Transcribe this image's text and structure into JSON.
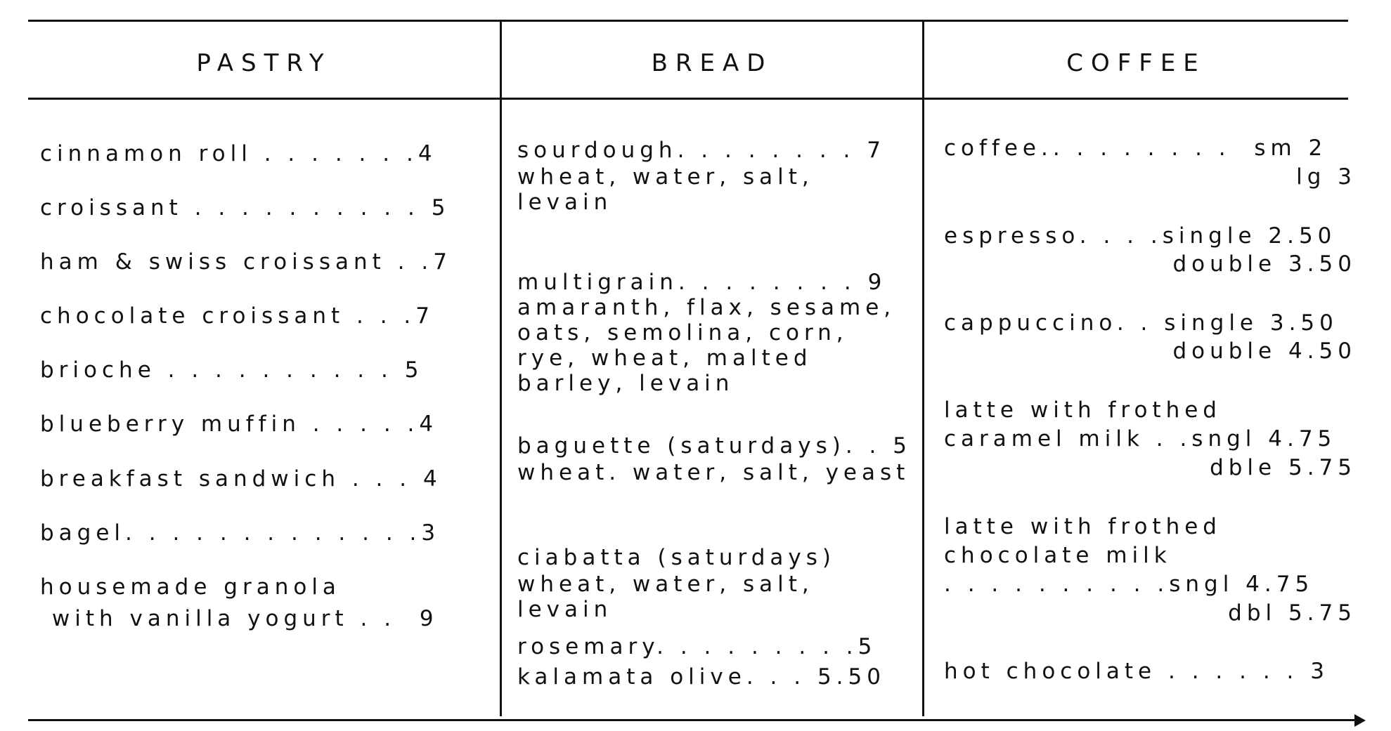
{
  "headers": {
    "pastry": "PASTRY",
    "bread": "BREAD",
    "coffee": "COFFEE"
  },
  "pastry": [
    "cinnamon roll . . . . . . .4",
    "croissant . . . . . . . . . . 5",
    "ham & swiss croissant . .7",
    "chocolate croissant . . .7",
    "brioche . . . . . . . . . . 5",
    "blueberry muffin . . . . .4",
    "breakfast sandwich . . . 4",
    "bagel. . . . . . . . . . . . .3",
    "housemade granola",
    " with vanilla yogurt . .  9"
  ],
  "bread": [
    "sourdough. . . . . . . . 7",
    "wheat, water, salt,",
    "levain",
    "multigrain. . . . . . . . 9",
    "amaranth, flax, sesame,",
    "oats, semolina, corn,",
    "rye, wheat, malted",
    "barley, levain",
    "baguette (saturdays). . 5",
    "wheat. water, salt, yeast",
    "ciabatta (saturdays)",
    "wheat, water, salt,",
    "levain",
    "rosemary. . . . . . . . .5",
    "kalamata olive. . . 5.50"
  ],
  "coffee": [
    "coffee.. . . . . . . .  sm 2",
    "lg 3",
    "espresso. . . .single 2.50",
    "double 3.50",
    "cappuccino. . single 3.50",
    "double 4.50",
    "latte with frothed",
    "caramel milk . .sngl 4.75",
    "dble 5.75",
    "latte with frothed",
    "chocolate milk",
    ". . . . . . . . . .sngl 4.75",
    "dbl 5.75",
    "hot chocolate . . . . . . 3"
  ]
}
